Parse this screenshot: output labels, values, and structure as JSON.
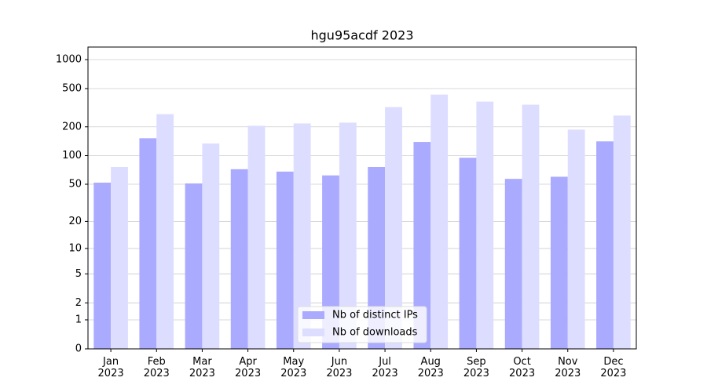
{
  "chart_data": {
    "type": "bar",
    "title": "hgu95acdf 2023",
    "categories": [
      "Jan\n2023",
      "Feb\n2023",
      "Mar\n2023",
      "Apr\n2023",
      "May\n2023",
      "Jun\n2023",
      "Jul\n2023",
      "Aug\n2023",
      "Sep\n2023",
      "Oct\n2023",
      "Nov\n2023",
      "Dec\n2023"
    ],
    "series": [
      {
        "name": "Nb of distinct IPs",
        "color": "#aaaaff",
        "values": [
          52,
          152,
          51,
          72,
          68,
          62,
          76,
          139,
          95,
          57,
          60,
          141
        ]
      },
      {
        "name": "Nb of downloads",
        "color": "#ddddff",
        "values": [
          76,
          271,
          134,
          205,
          217,
          221,
          321,
          433,
          366,
          340,
          187,
          262
        ]
      }
    ],
    "yscale": "log1p",
    "ylim": [
      0,
      1350
    ],
    "yticks": [
      0,
      1,
      2,
      5,
      10,
      20,
      50,
      100,
      200,
      500,
      1000
    ],
    "grid": true,
    "legend": "lower center"
  }
}
